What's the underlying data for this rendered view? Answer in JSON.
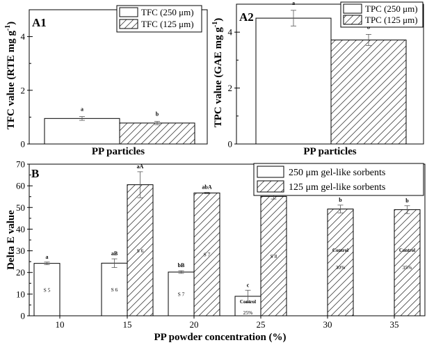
{
  "chart_data": [
    {
      "panel": "A1",
      "type": "bar",
      "xlabel": "PP particles",
      "ylabel": "TFC value (RTE mg g",
      "ylabel_sup": "-1",
      "ylabel_close": ")",
      "ylim": [
        0,
        5
      ],
      "yticks": [
        "0",
        "2",
        "4"
      ],
      "categories": [
        ""
      ],
      "series": [
        {
          "name": "TFC (250 μm)",
          "pattern": "solid",
          "values": [
            0.95
          ],
          "errors": [
            0.07
          ],
          "labels": [
            "a"
          ]
        },
        {
          "name": "TFC (125 μm)",
          "pattern": "hatched",
          "values": [
            0.78
          ],
          "errors": [
            0.06
          ],
          "labels": [
            "b"
          ]
        }
      ],
      "legend": "top-right"
    },
    {
      "panel": "A2",
      "type": "bar",
      "xlabel": "PP particles",
      "ylabel": "TPC value (GAE mg g",
      "ylabel_sup": "-1",
      "ylabel_close": ")",
      "ylim": [
        0,
        5
      ],
      "yticks": [
        "0",
        "2",
        "4"
      ],
      "categories": [
        ""
      ],
      "series": [
        {
          "name": "TPC (250 μm)",
          "pattern": "solid",
          "values": [
            4.5
          ],
          "errors": [
            0.28
          ],
          "labels": [
            "a"
          ]
        },
        {
          "name": "TPC (125 μm)",
          "pattern": "hatched",
          "values": [
            3.72
          ],
          "errors": [
            0.2
          ],
          "labels": [
            "b"
          ]
        }
      ],
      "legend": "top-right"
    },
    {
      "panel": "B",
      "type": "bar",
      "xlabel": "PP powder concentration (%)",
      "ylabel": "Delta E value",
      "ylim": [
        0,
        70
      ],
      "yticks": [
        "0",
        "10",
        "20",
        "30",
        "40",
        "50",
        "60",
        "70"
      ],
      "categories": [
        "10",
        "15",
        "20",
        "25",
        "30",
        "35"
      ],
      "series": [
        {
          "name": "250 μm gel-like sorbents",
          "pattern": "solid",
          "values": [
            24.2,
            24.3,
            20.2,
            9.0,
            null,
            null
          ],
          "errors": [
            0.6,
            2.0,
            0.6,
            2.8,
            null,
            null
          ],
          "labels": [
            "a",
            "aB",
            "bB",
            "c",
            "",
            ""
          ],
          "bar_text": [
            [
              "S 5"
            ],
            [
              "S 6"
            ],
            [
              "S 7"
            ],
            [
              "Control",
              "25%"
            ],
            [],
            []
          ]
        },
        {
          "name": "125 μm gel-like sorbents",
          "pattern": "hatched",
          "values": [
            null,
            60.5,
            56.7,
            55.1,
            49.3,
            49.0
          ],
          "errors": [
            null,
            6.0,
            0.3,
            1.2,
            1.8,
            1.8
          ],
          "labels": [
            "",
            "aA",
            "abA",
            "ab",
            "b",
            "b"
          ],
          "bar_text": [
            [],
            [
              "S 6"
            ],
            [
              "S 7"
            ],
            [
              "S 8"
            ],
            [
              "Control",
              "30%"
            ],
            [
              "Control",
              "35%"
            ]
          ]
        }
      ],
      "legend": "top-right"
    }
  ]
}
